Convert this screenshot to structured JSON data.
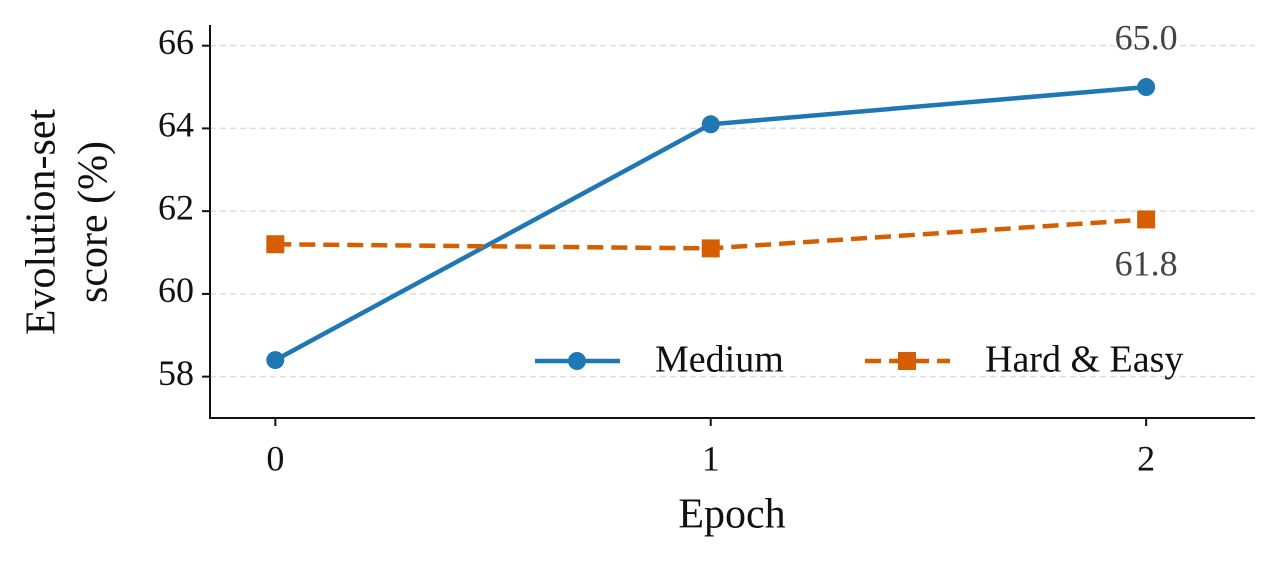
{
  "chart_data": {
    "type": "line",
    "x": [
      0,
      1,
      2
    ],
    "xlim": [
      -0.15,
      2.25
    ],
    "xticks": [
      0,
      1,
      2
    ],
    "ylim": [
      57,
      66.5
    ],
    "yticks": [
      58,
      60,
      62,
      64,
      66
    ],
    "xlabel": "Epoch",
    "ylabel": [
      "Evolution-set",
      "score (%)"
    ],
    "grid": true,
    "legend": "lower right",
    "series": [
      {
        "name": "Medium",
        "color": "#1f77b4",
        "marker": "circle",
        "dash": "solid",
        "values": [
          58.4,
          64.1,
          65.0
        ],
        "value_labels": [
          null,
          null,
          "65.0"
        ]
      },
      {
        "name": "Hard & Easy",
        "color": "#d55e00",
        "marker": "square",
        "dash": "dashed",
        "values": [
          61.2,
          61.1,
          61.8
        ],
        "value_labels": [
          null,
          null,
          "61.8"
        ]
      }
    ]
  }
}
